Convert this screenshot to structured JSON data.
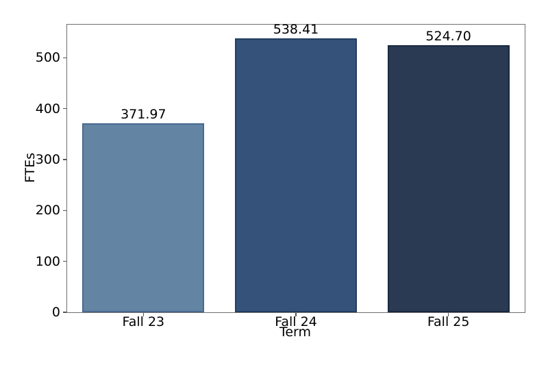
{
  "figure": {
    "background": "#ffffff"
  },
  "chart_data": {
    "type": "bar",
    "categories": [
      "Fall 23",
      "Fall 24",
      "Fall 25"
    ],
    "values": [
      371.97,
      538.41,
      524.7
    ],
    "value_labels": [
      "371.97",
      "538.41",
      "524.70"
    ],
    "xlabel": "Term",
    "ylabel": "FTEs",
    "ylim": [
      0,
      565
    ],
    "yticks": [
      0,
      100,
      200,
      300,
      400,
      500
    ],
    "ytick_labels": [
      "0",
      "100",
      "200",
      "300",
      "400",
      "500"
    ],
    "bar_width_fraction": 0.8,
    "grid": false,
    "legend": false,
    "bar_colors": [
      "#6384A3",
      "#35527B",
      "#293A52"
    ],
    "bar_edge_colors": [
      "#476A8F",
      "#223E61",
      "#18283E"
    ],
    "axis_color": "#6e6e6e",
    "text_color": "#000000"
  }
}
